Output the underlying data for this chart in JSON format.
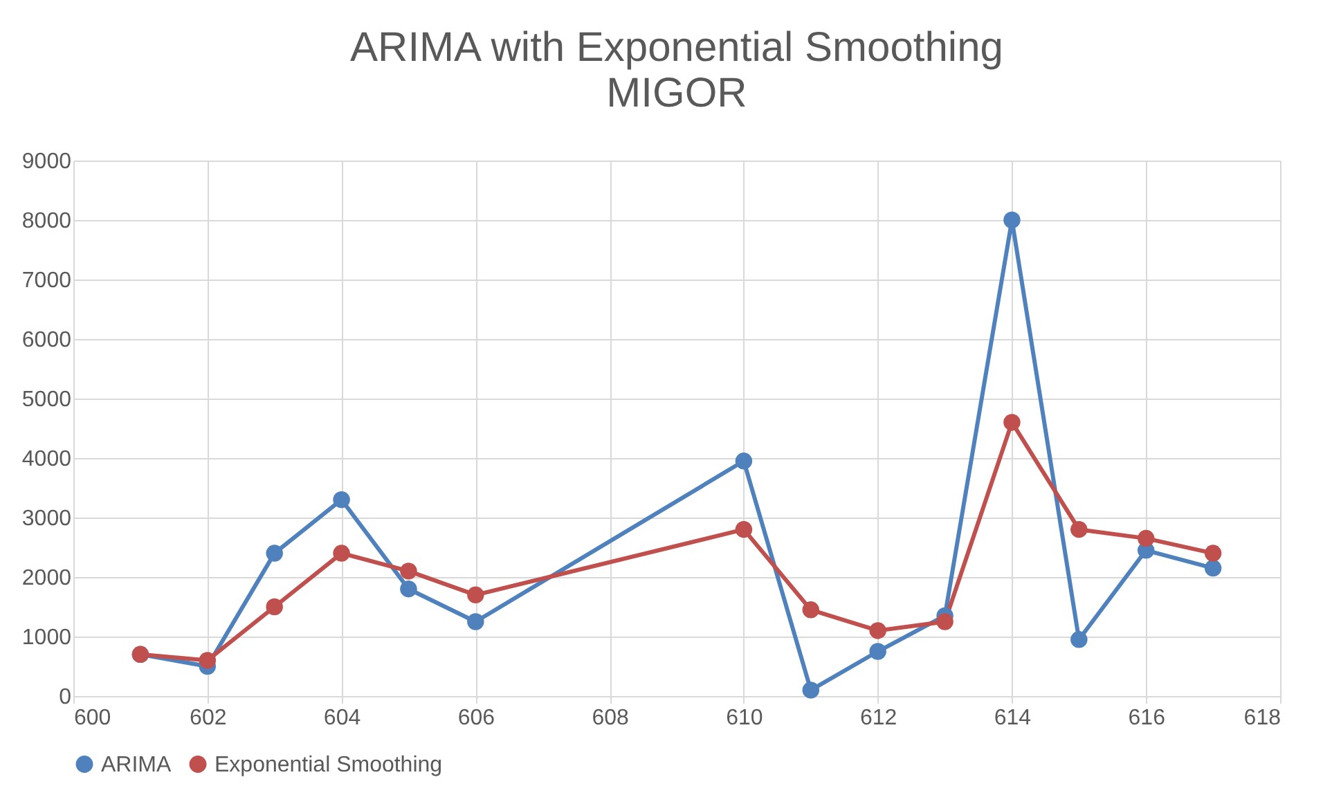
{
  "chart_data": {
    "type": "line",
    "title": "ARIMA with Exponential Smoothing",
    "subtitle": "MIGOR",
    "x": [
      601,
      602,
      603,
      604,
      605,
      606,
      610,
      611,
      612,
      613,
      614,
      615,
      616,
      617
    ],
    "series": [
      {
        "name": "ARIMA",
        "color": "#4f81bd",
        "values": [
          700,
          500,
          2400,
          3300,
          1800,
          1250,
          3950,
          100,
          750,
          1350,
          8000,
          950,
          2450,
          2150
        ]
      },
      {
        "name": "Exponential Smoothing",
        "color": "#c0504d",
        "values": [
          700,
          600,
          1500,
          2400,
          2100,
          1700,
          2800,
          1450,
          1100,
          1250,
          4600,
          2800,
          2650,
          2400
        ]
      }
    ],
    "xlim": [
      600,
      618
    ],
    "xticks": [
      600,
      602,
      604,
      606,
      608,
      610,
      612,
      614,
      616,
      618
    ],
    "ylim": [
      0,
      9000
    ],
    "yticks": [
      0,
      1000,
      2000,
      3000,
      4000,
      5000,
      6000,
      7000,
      8000,
      9000
    ],
    "grid": true,
    "legend": "bottom",
    "marker": "circle",
    "line_style": "solid"
  }
}
